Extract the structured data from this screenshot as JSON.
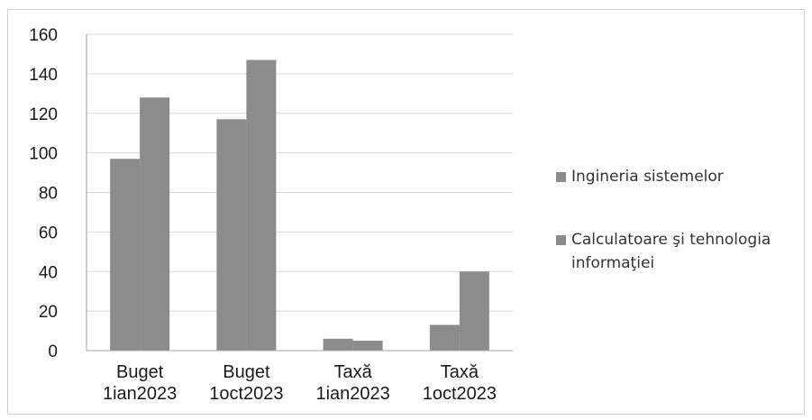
{
  "chart_data": {
    "type": "bar",
    "categories": [
      [
        "Buget",
        "1ian2023"
      ],
      [
        "Buget",
        "1oct2023"
      ],
      [
        "Taxă",
        "1ian2023"
      ],
      [
        "Taxă",
        "1oct2023"
      ]
    ],
    "series": [
      {
        "name": "Ingineria sistemelor",
        "values": [
          97,
          117,
          6,
          13
        ]
      },
      {
        "name": "Calculatoare şi tehnologia informaţiei",
        "values": [
          128,
          147,
          5,
          40
        ]
      }
    ],
    "ylim": [
      0,
      160
    ],
    "yticks": [
      "0",
      "20",
      "40",
      "60",
      "80",
      "100",
      "120",
      "140",
      "160"
    ],
    "grid": true,
    "legend_position": "right",
    "colors": {
      "bars": "#8c8c8c",
      "grid": "#d9d9d9",
      "axis": "#a6a6a6"
    }
  },
  "legend": {
    "items": [
      "Ingineria sistemelor",
      "Calculatoare şi tehnologia informaţiei"
    ]
  }
}
